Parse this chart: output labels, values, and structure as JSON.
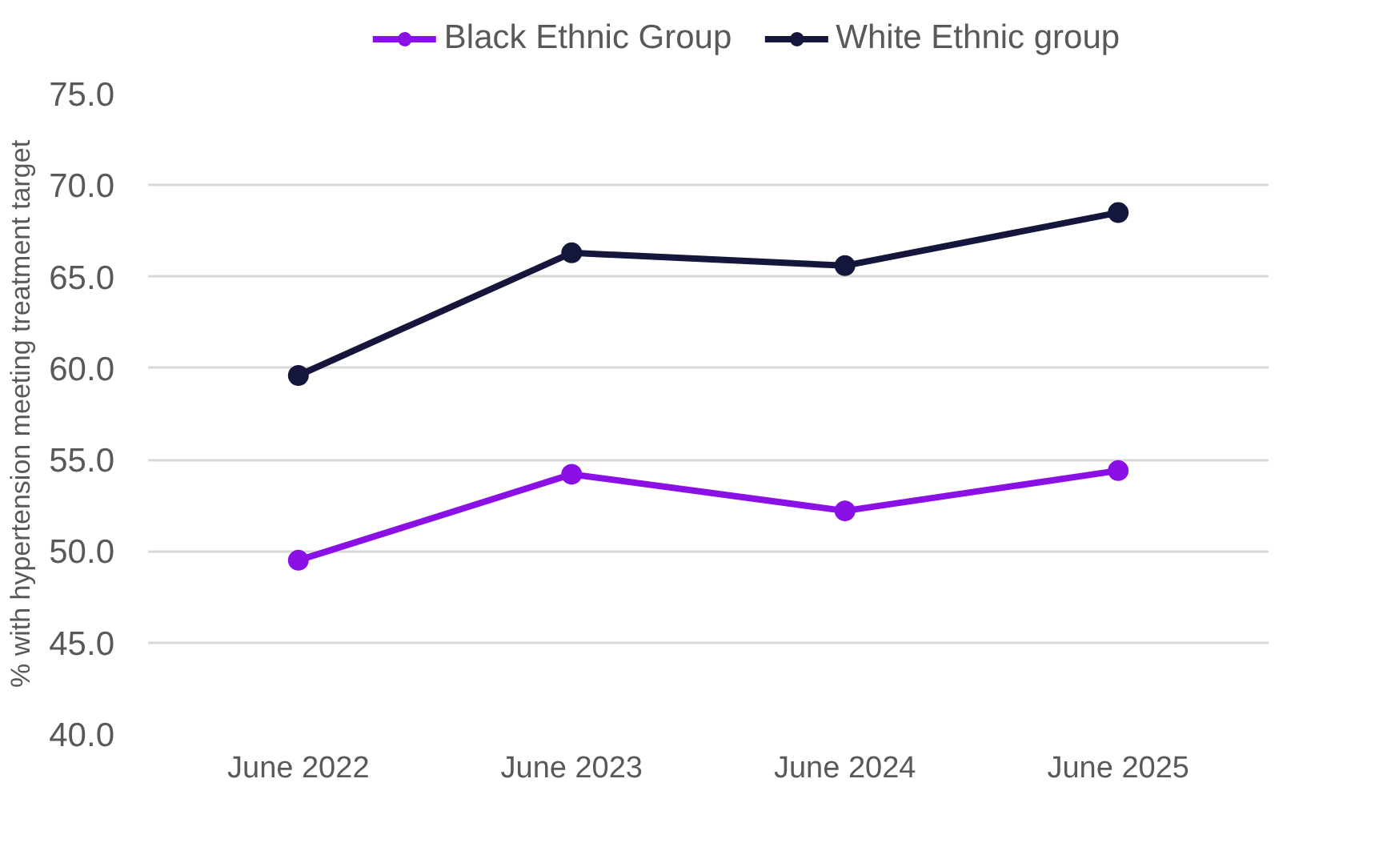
{
  "chart_data": {
    "type": "line",
    "ylabel": "% with hypertension meeting treatment target",
    "categories": [
      "June 2022",
      "June 2023",
      "June 2024",
      "June 2025"
    ],
    "series": [
      {
        "name": "Black Ethnic Group",
        "color": "#8a10e6",
        "values": [
          49.5,
          54.2,
          52.2,
          54.4
        ]
      },
      {
        "name": "White Ethnic group",
        "color": "#14163c",
        "values": [
          59.6,
          66.3,
          65.6,
          68.5
        ]
      }
    ],
    "ylim": [
      40,
      75
    ],
    "yticks": [
      {
        "value": 40,
        "label": "40.0"
      },
      {
        "value": 45,
        "label": "45.0"
      },
      {
        "value": 50,
        "label": "50.0"
      },
      {
        "value": 55,
        "label": "55.0"
      },
      {
        "value": 60,
        "label": "60.0"
      },
      {
        "value": 65,
        "label": "65.0"
      },
      {
        "value": 70,
        "label": "70.0"
      },
      {
        "value": 75,
        "label": "75.0"
      }
    ],
    "grid": "y",
    "legend": "top",
    "marker": "circle",
    "line_style": "solid"
  }
}
